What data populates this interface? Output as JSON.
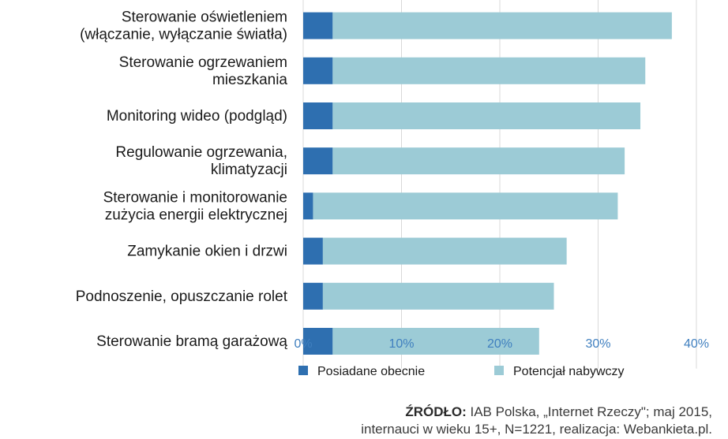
{
  "chart_data": {
    "type": "bar",
    "orientation": "horizontal",
    "stacked": true,
    "categories": [
      [
        "Sterowanie oświetleniem",
        "(włączanie, wyłączanie światła)"
      ],
      [
        "Sterowanie ogrzewaniem",
        "mieszkania"
      ],
      [
        "Monitoring wideo (podgląd)"
      ],
      [
        "Regulowanie ogrzewania,",
        "klimatyzacji"
      ],
      [
        "Sterowanie i monitorowanie",
        "zużycia energii elektrycznej"
      ],
      [
        "Zamykanie okien i drzwi"
      ],
      [
        "Podnoszenie, opuszczanie rolet"
      ],
      [
        "Sterowanie bramą garażową"
      ]
    ],
    "series": [
      {
        "name": "Posiadane obecnie",
        "color": "#2e6fb0",
        "values": [
          3,
          3,
          3,
          3,
          1,
          2,
          2,
          3
        ]
      },
      {
        "name": "Potencjał nabywczy",
        "color": "#9ccbd6",
        "values": [
          34.5,
          31.8,
          31.3,
          29.7,
          31,
          24.8,
          23.5,
          21
        ]
      }
    ],
    "xlim": [
      0,
      40
    ],
    "xticks": [
      "0%",
      "10%",
      "20%",
      "30%",
      "40%"
    ],
    "grid": true,
    "legend_position": "bottom"
  },
  "source": {
    "label": "ŹRÓDŁO:",
    "line1": "IAB Polska, „Internet Rzeczy\"; maj 2015,",
    "line2": "internauci w wieku 15+, N=1221, realizacja: Webankieta.pl."
  }
}
